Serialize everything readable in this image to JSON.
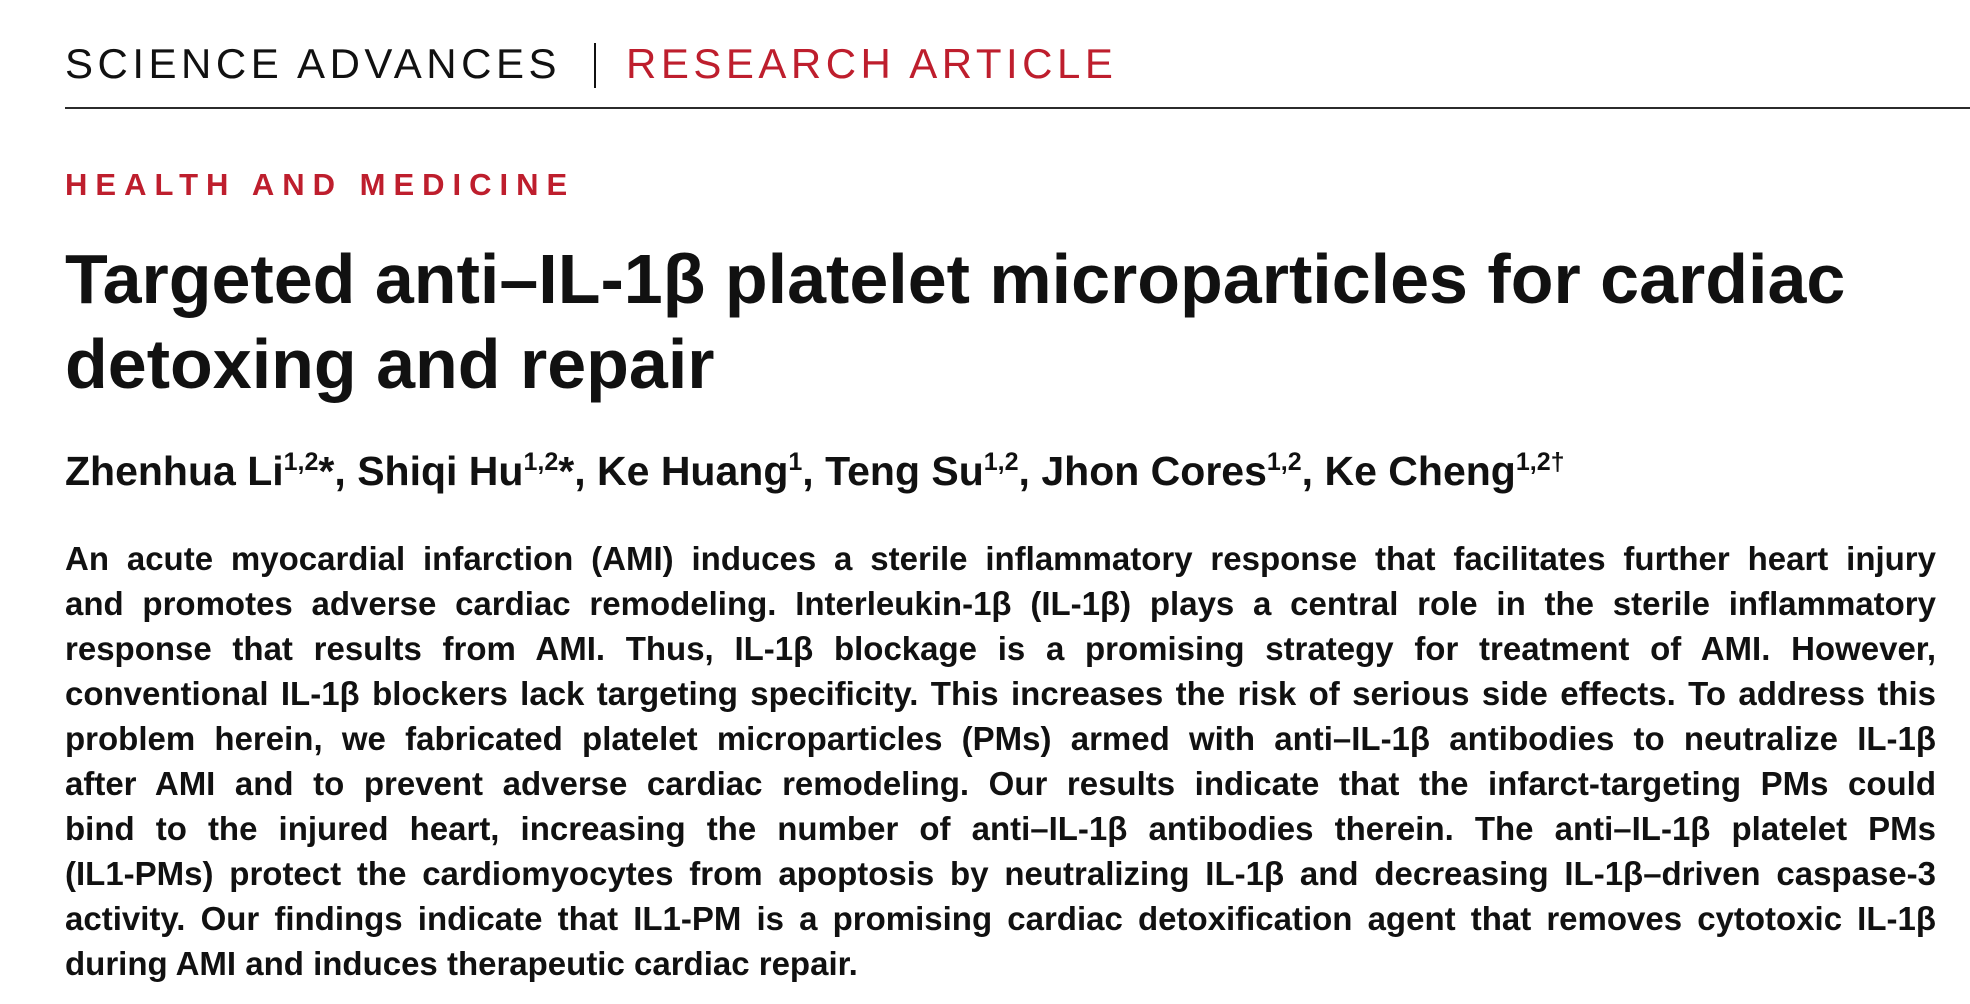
{
  "header": {
    "journal": "SCIENCE ADVANCES",
    "article_type": "RESEARCH ARTICLE"
  },
  "section": "HEALTH AND MEDICINE",
  "title_lines": [
    "Targeted anti–IL-1β platelet microparticles for cardiac",
    "detoxing and repair"
  ],
  "authors": [
    {
      "name": "Zhenhua Li",
      "affiliations": "1,2",
      "note": "*"
    },
    {
      "name": "Shiqi Hu",
      "affiliations": "1,2",
      "note": "*"
    },
    {
      "name": "Ke Huang",
      "affiliations": "1"
    },
    {
      "name": "Teng Su",
      "affiliations": "1,2"
    },
    {
      "name": "Jhon Cores",
      "affiliations": "1,2"
    },
    {
      "name": "Ke Cheng",
      "affiliations": "1,2†"
    }
  ],
  "author_separator": ",",
  "abstract_lines": [
    "An acute myocardial infarction (AMI) induces a sterile inflammatory response that facilitates further heart injury",
    "and promotes adverse cardiac remodeling. Interleukin-1β (IL-1β) plays a central role in the sterile inflammatory",
    "response that results from AMI. Thus, IL-1β blockage is a promising strategy for treatment of AMI. However,",
    "conventional IL-1β blockers lack targeting specificity. This increases the risk of serious side effects. To address this",
    "problem herein, we fabricated platelet microparticles (PMs) armed with anti–IL-1β antibodies to neutralize IL-1β",
    "after AMI and to prevent adverse cardiac remodeling. Our results indicate that the infarct-targeting PMs could",
    "bind to the injured heart, increasing the number of anti–IL-1β antibodies therein. The anti–IL-1β platelet PMs",
    "(IL1-PMs) protect the cardiomyocytes from apoptosis by neutralizing IL-1β and decreasing IL-1β–driven caspase-3",
    "activity. Our findings indicate that IL1-PM is a promising cardiac detoxification agent that removes cytotoxic IL-1β",
    "during AMI and induces therapeutic cardiac repair."
  ],
  "colors": {
    "accent": "#be1e2d",
    "text": "#111111"
  }
}
